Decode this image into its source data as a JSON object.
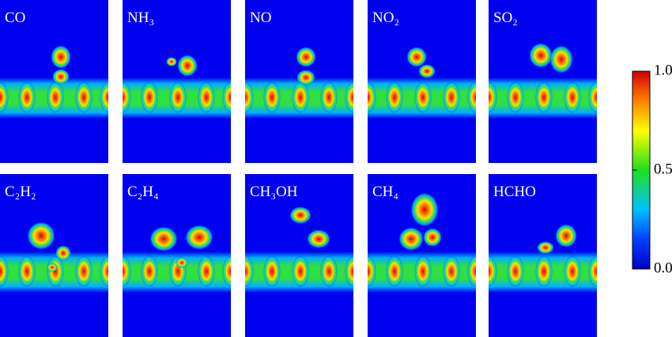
{
  "panels": [
    {
      "label": "CO"
    },
    {
      "label": "NH₃"
    },
    {
      "label": "NO"
    },
    {
      "label": "NO₂"
    },
    {
      "label": "SO₂"
    },
    {
      "label": "C₂H₂"
    },
    {
      "label": "C₂H₄"
    },
    {
      "label": "CH₃OH"
    },
    {
      "label": "CH₄"
    },
    {
      "label": "HCHO"
    }
  ],
  "colorbar": {
    "clim": [
      0,
      1
    ],
    "ticks": [
      {
        "value": 1,
        "label": "1.0"
      },
      {
        "value": 0.5,
        "label": "0.5"
      },
      {
        "value": 0,
        "label": "0.0"
      }
    ]
  }
}
